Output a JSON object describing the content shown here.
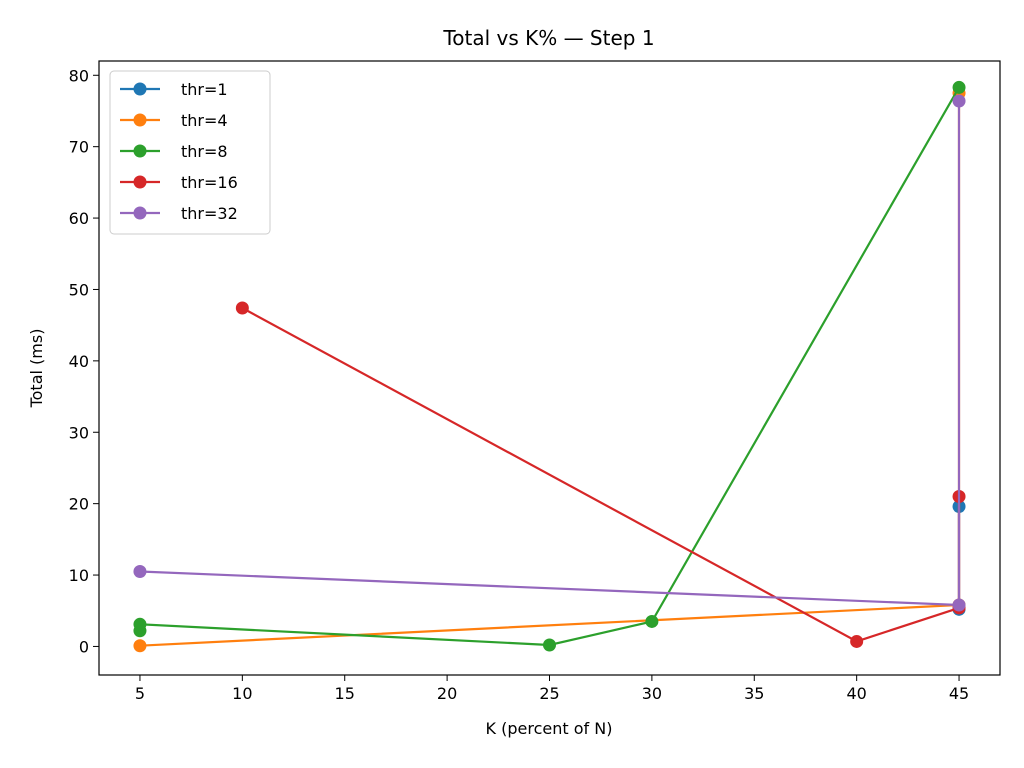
{
  "chart_data": {
    "type": "line",
    "title": "Total vs K% — Step 1",
    "xlabel": "K (percent of N)",
    "ylabel": "Total (ms)",
    "xlim": [
      3,
      47
    ],
    "ylim": [
      -4,
      82
    ],
    "xticks": [
      5,
      10,
      15,
      20,
      25,
      30,
      35,
      40,
      45
    ],
    "yticks": [
      0,
      10,
      20,
      30,
      40,
      50,
      60,
      70,
      80
    ],
    "grid": false,
    "legend_position": "top-left",
    "series": [
      {
        "name": "thr=1",
        "color": "#1f77b4",
        "points": [
          [
            45,
            19.6
          ],
          [
            45,
            5.2
          ]
        ]
      },
      {
        "name": "thr=4",
        "color": "#ff7f0e",
        "points": [
          [
            5,
            0.1
          ],
          [
            45,
            5.8
          ],
          [
            45,
            77.5
          ]
        ]
      },
      {
        "name": "thr=8",
        "color": "#2ca02c",
        "points": [
          [
            5,
            2.2
          ],
          [
            5,
            3.1
          ],
          [
            25,
            0.2
          ],
          [
            30,
            3.5
          ],
          [
            45,
            78.3
          ]
        ]
      },
      {
        "name": "thr=16",
        "color": "#d62728",
        "points": [
          [
            10,
            47.4
          ],
          [
            40,
            0.7
          ],
          [
            45,
            5.4
          ],
          [
            45,
            21.0
          ]
        ]
      },
      {
        "name": "thr=32",
        "color": "#9467bd",
        "points": [
          [
            5,
            10.5
          ],
          [
            45,
            5.8
          ],
          [
            45,
            76.4
          ]
        ]
      }
    ]
  }
}
